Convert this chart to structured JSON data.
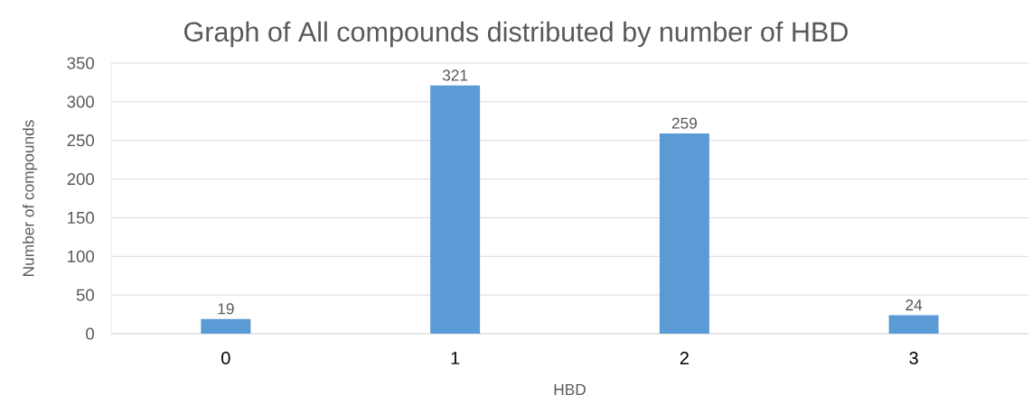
{
  "chart_data": {
    "type": "bar",
    "title": "Graph of All compounds distributed by number of HBD",
    "xlabel": "HBD",
    "ylabel": "Number of compounds",
    "categories": [
      "0",
      "1",
      "2",
      "3"
    ],
    "values": [
      19,
      321,
      259,
      24
    ],
    "color": "#5b9bd5",
    "ylim": [
      0,
      350
    ],
    "yticks": [
      0,
      50,
      100,
      150,
      200,
      250,
      300,
      350
    ],
    "grid": "y",
    "data_labels": true
  }
}
